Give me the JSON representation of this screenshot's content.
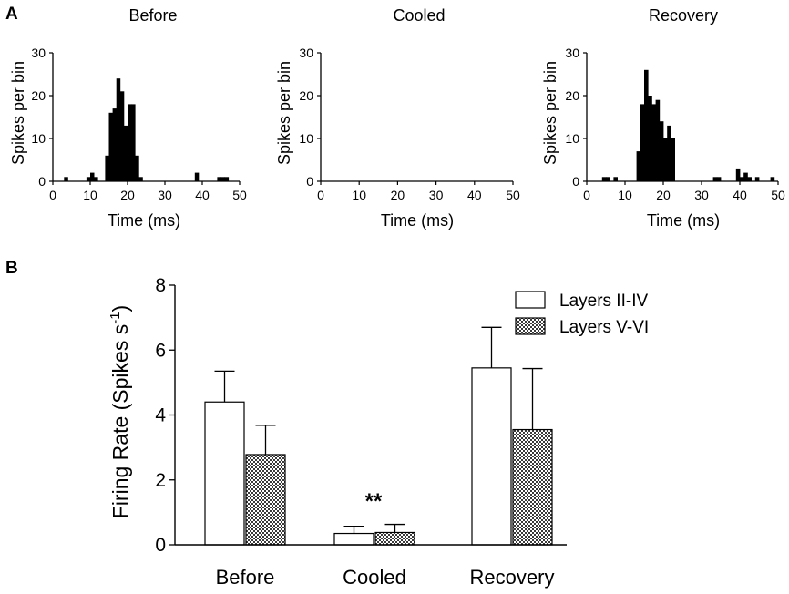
{
  "figure": {
    "panel_a_label": "A",
    "panel_b_label": "B"
  },
  "chart_data": [
    {
      "type": "bar",
      "subtype": "histogram",
      "panel": "A",
      "title": "Before",
      "xlabel": "Time (ms)",
      "ylabel": "Spikes per bin",
      "xlim": [
        0,
        50
      ],
      "ylim": [
        0,
        30
      ],
      "xticks": [
        "0",
        "10",
        "20",
        "30",
        "40",
        "50"
      ],
      "yticks": [
        "0",
        "10",
        "20",
        "30"
      ],
      "bin_width_ms": 1,
      "bins": [
        {
          "x": 3,
          "y": 1
        },
        {
          "x": 9,
          "y": 1
        },
        {
          "x": 10,
          "y": 2
        },
        {
          "x": 11,
          "y": 1
        },
        {
          "x": 14,
          "y": 6
        },
        {
          "x": 15,
          "y": 16
        },
        {
          "x": 16,
          "y": 17
        },
        {
          "x": 17,
          "y": 24
        },
        {
          "x": 18,
          "y": 21
        },
        {
          "x": 19,
          "y": 13
        },
        {
          "x": 20,
          "y": 18
        },
        {
          "x": 21,
          "y": 18
        },
        {
          "x": 22,
          "y": 6
        },
        {
          "x": 23,
          "y": 1
        },
        {
          "x": 38,
          "y": 2
        },
        {
          "x": 44,
          "y": 1
        },
        {
          "x": 45,
          "y": 1
        },
        {
          "x": 46,
          "y": 1
        }
      ]
    },
    {
      "type": "bar",
      "subtype": "histogram",
      "panel": "A",
      "title": "Cooled",
      "xlabel": "Time (ms)",
      "ylabel": "Spikes per bin",
      "xlim": [
        0,
        50
      ],
      "ylim": [
        0,
        30
      ],
      "xticks": [
        "0",
        "10",
        "20",
        "30",
        "40",
        "50"
      ],
      "yticks": [
        "0",
        "10",
        "20",
        "30"
      ],
      "bin_width_ms": 1,
      "bins": []
    },
    {
      "type": "bar",
      "subtype": "histogram",
      "panel": "A",
      "title": "Recovery",
      "xlabel": "Time (ms)",
      "ylabel": "Spikes per bin",
      "xlim": [
        0,
        50
      ],
      "ylim": [
        0,
        30
      ],
      "xticks": [
        "0",
        "10",
        "20",
        "30",
        "40",
        "50"
      ],
      "yticks": [
        "0",
        "10",
        "20",
        "30"
      ],
      "bin_width_ms": 1,
      "bins": [
        {
          "x": 4,
          "y": 1
        },
        {
          "x": 5,
          "y": 1
        },
        {
          "x": 7,
          "y": 1
        },
        {
          "x": 13,
          "y": 7
        },
        {
          "x": 14,
          "y": 18
        },
        {
          "x": 15,
          "y": 26
        },
        {
          "x": 16,
          "y": 20
        },
        {
          "x": 17,
          "y": 18
        },
        {
          "x": 18,
          "y": 19
        },
        {
          "x": 19,
          "y": 14
        },
        {
          "x": 20,
          "y": 10
        },
        {
          "x": 21,
          "y": 13
        },
        {
          "x": 22,
          "y": 10
        },
        {
          "x": 33,
          "y": 1
        },
        {
          "x": 34,
          "y": 1
        },
        {
          "x": 39,
          "y": 3
        },
        {
          "x": 40,
          "y": 1
        },
        {
          "x": 41,
          "y": 2
        },
        {
          "x": 42,
          "y": 1
        },
        {
          "x": 44,
          "y": 1
        },
        {
          "x": 48,
          "y": 1
        }
      ]
    },
    {
      "type": "bar",
      "panel": "B",
      "title": "",
      "xlabel": "",
      "ylabel": "Firing Rate (Spikes s",
      "ylabel_superscript": "-1",
      "ylabel_close": ")",
      "categories": [
        "Before",
        "Cooled",
        "Recovery"
      ],
      "ylim": [
        0,
        8
      ],
      "yticks": [
        "0",
        "2",
        "4",
        "6",
        "8"
      ],
      "series": [
        {
          "name": "Layers II-IV",
          "fill": "open",
          "values": [
            4.4,
            0.35,
            5.45
          ],
          "errors": [
            0.95,
            0.22,
            1.25
          ]
        },
        {
          "name": "Layers V-VI",
          "fill": "checkered",
          "values": [
            2.78,
            0.38,
            3.55
          ],
          "errors": [
            0.9,
            0.25,
            1.88
          ]
        }
      ],
      "annotations": [
        {
          "text": "**",
          "category": "Cooled"
        }
      ],
      "legend": "top-right"
    }
  ],
  "colors": {
    "ink": "#000000",
    "bar_open_fill": "#ffffff",
    "checker_dark": "#3a3a3a",
    "checker_light": "#ffffff"
  }
}
